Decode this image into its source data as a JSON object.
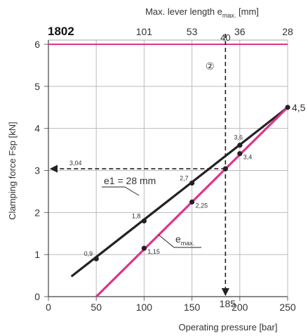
{
  "chart_data": {
    "type": "line",
    "model": "1802",
    "xlabel": "Operating pressure [bar]",
    "ylabel": "Clamping force Fsp [kN]",
    "top_axis_label": {
      "main": "Max. lever length e",
      "sub": "max.",
      "unit": " [mm]"
    },
    "xlim": [
      0,
      250
    ],
    "ylim": [
      0,
      6
    ],
    "x_ticks": [
      0,
      50,
      100,
      150,
      200,
      250
    ],
    "y_ticks": [
      0,
      1,
      2,
      3,
      4,
      5,
      6
    ],
    "top_ticks": [
      {
        "x": 100,
        "label": "101"
      },
      {
        "x": 150,
        "label": "53"
      },
      {
        "x": 200,
        "label": "36"
      },
      {
        "x": 250,
        "label": "28"
      }
    ],
    "top_tick_at_185": {
      "x": 185,
      "label": "40"
    },
    "max_force_line": {
      "y": 6,
      "color": "#e0338c"
    },
    "series": [
      {
        "label_main": "e1 = 28 mm",
        "color": "#222222",
        "line": [
          [
            24,
            0.48
          ],
          [
            250,
            4.5
          ]
        ],
        "points": [
          {
            "x": 50,
            "y": 0.9,
            "label": "0,9"
          },
          {
            "x": 100,
            "y": 1.8,
            "label": "1,8"
          },
          {
            "x": 150,
            "y": 2.7,
            "label": "2,7"
          },
          {
            "x": 200,
            "y": 3.6,
            "label": "3,6"
          }
        ]
      },
      {
        "label_main": "e",
        "label_sub": "max.",
        "color": "#e0338c",
        "line": [
          [
            50,
            0
          ],
          [
            250,
            4.5
          ]
        ],
        "points": [
          {
            "x": 100,
            "y": 1.15,
            "label": "1,15"
          },
          {
            "x": 150,
            "y": 2.25,
            "label": "2,25"
          },
          {
            "x": 185,
            "y": 3.04,
            "label": ""
          },
          {
            "x": 200,
            "y": 3.4,
            "label": "3,4"
          }
        ]
      }
    ],
    "end_value_label": "4,5",
    "example": {
      "marker": "②",
      "x": 185,
      "y": 3.04,
      "x_label": "185",
      "y_label": "3,04"
    }
  }
}
